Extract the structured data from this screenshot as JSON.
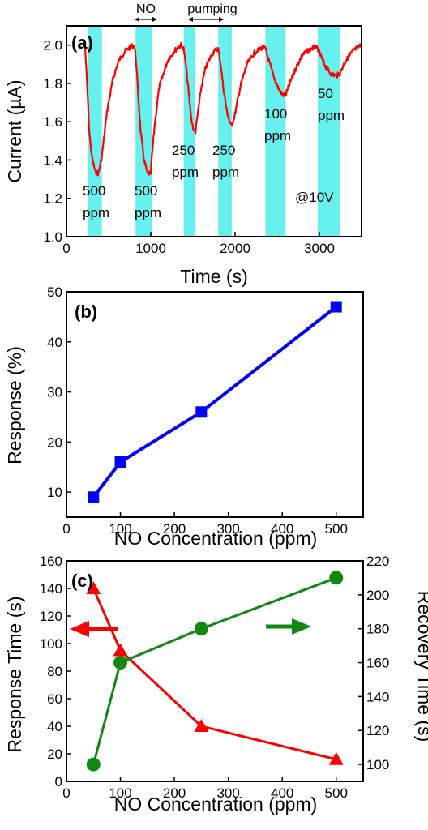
{
  "chart_data": [
    {
      "panel": "(a)",
      "type": "line",
      "xlabel": "Time (s)",
      "ylabel": "Current (µA)",
      "xlim": [
        0,
        3500
      ],
      "ylim": [
        1.0,
        2.1
      ],
      "xticks": [
        0,
        1000,
        2000,
        3000
      ],
      "yticks": [
        1.0,
        1.2,
        1.4,
        1.6,
        1.8,
        2.0
      ],
      "series_color": "#ff0000",
      "highlight_color": "#66f0ee",
      "no_exposure_intervals": [
        [
          250,
          420
        ],
        [
          820,
          1010
        ],
        [
          1390,
          1530
        ],
        [
          1800,
          1960
        ],
        [
          2360,
          2600
        ],
        [
          2980,
          3240
        ]
      ],
      "current": {
        "x": [
          220,
          250,
          270,
          300,
          340,
          380,
          420,
          480,
          550,
          620,
          700,
          760,
          800,
          820,
          850,
          880,
          920,
          960,
          1000,
          1010,
          1050,
          1100,
          1200,
          1280,
          1330,
          1360,
          1390,
          1420,
          1450,
          1480,
          1510,
          1530,
          1560,
          1600,
          1650,
          1720,
          1780,
          1800,
          1830,
          1860,
          1900,
          1940,
          1960,
          2000,
          2060,
          2140,
          2230,
          2330,
          2360,
          2400,
          2440,
          2480,
          2520,
          2560,
          2600,
          2650,
          2720,
          2800,
          2900,
          2950,
          2980,
          3020,
          3060,
          3100,
          3140,
          3200,
          3240,
          3300,
          3400,
          3500
        ],
        "y": [
          2.0,
          1.75,
          1.55,
          1.42,
          1.34,
          1.33,
          1.42,
          1.65,
          1.82,
          1.92,
          1.97,
          1.99,
          2.0,
          1.95,
          1.75,
          1.55,
          1.4,
          1.33,
          1.33,
          1.4,
          1.6,
          1.78,
          1.92,
          1.97,
          1.99,
          2.0,
          1.98,
          1.88,
          1.75,
          1.62,
          1.55,
          1.55,
          1.65,
          1.78,
          1.88,
          1.95,
          1.98,
          1.98,
          1.9,
          1.78,
          1.66,
          1.59,
          1.58,
          1.64,
          1.78,
          1.9,
          1.96,
          1.99,
          1.98,
          1.92,
          1.86,
          1.81,
          1.77,
          1.74,
          1.74,
          1.8,
          1.88,
          1.95,
          1.98,
          1.99,
          1.98,
          1.94,
          1.9,
          1.87,
          1.85,
          1.84,
          1.85,
          1.91,
          1.97,
          2.0
        ]
      },
      "annotations": {
        "no": "NO",
        "pumping": "pumping",
        "voltage": "@10V",
        "labels": [
          {
            "value": "500",
            "unit": "ppm"
          },
          {
            "value": "500",
            "unit": "ppm"
          },
          {
            "value": "250",
            "unit": "ppm"
          },
          {
            "value": "250",
            "unit": "ppm"
          },
          {
            "value": "100",
            "unit": "ppm"
          },
          {
            "value": "50",
            "unit": "ppm"
          }
        ]
      }
    },
    {
      "panel": "(b)",
      "type": "line",
      "xlabel": "NO Concentration (ppm)",
      "ylabel": "Response (%)",
      "xlim": [
        0,
        550
      ],
      "ylim": [
        5,
        50
      ],
      "xticks": [
        0,
        100,
        200,
        300,
        400,
        500
      ],
      "yticks": [
        10,
        20,
        30,
        40,
        50
      ],
      "series_color": "#0000ff",
      "marker": "square",
      "x": [
        50,
        100,
        250,
        500
      ],
      "y": [
        9,
        16,
        26,
        47
      ]
    },
    {
      "panel": "(c)",
      "type": "line",
      "xlabel": "NO Concentration (ppm)",
      "ylabel": "Response Time (s)",
      "ylabel_right": "Recovery Time (s)",
      "xlim": [
        0,
        550
      ],
      "ylim": [
        0,
        160
      ],
      "ylim_right": [
        90,
        220
      ],
      "xticks": [
        0,
        100,
        200,
        300,
        400,
        500
      ],
      "yticks": [
        0,
        20,
        40,
        60,
        80,
        100,
        120,
        140,
        160
      ],
      "yticks_right": [
        100,
        120,
        140,
        160,
        180,
        200,
        220
      ],
      "response_time": {
        "x": [
          50,
          100,
          250,
          500
        ],
        "y": [
          140,
          95,
          40,
          16
        ],
        "color": "#ff0000",
        "marker": "triangle",
        "axis": "left"
      },
      "recovery_time": {
        "x": [
          50,
          100,
          250,
          500
        ],
        "y": [
          100,
          160,
          180,
          210
        ],
        "color": "#118811",
        "marker": "circle",
        "axis": "right"
      },
      "arrows": [
        {
          "direction": "left",
          "color": "#ff0000",
          "points_to": "left-axis"
        },
        {
          "direction": "right",
          "color": "#118811",
          "points_to": "right-axis"
        }
      ]
    }
  ]
}
